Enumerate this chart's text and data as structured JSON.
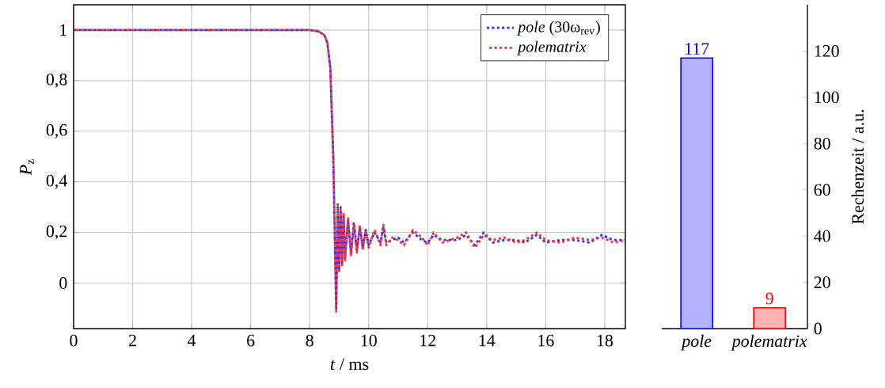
{
  "chart_data": [
    {
      "type": "line",
      "xlabel": "*t* / ms",
      "ylabel": "*P*$_{z}$",
      "xlim": [
        0,
        18.7
      ],
      "ylim": [
        -0.18,
        1.1
      ],
      "xticks": [
        0,
        2,
        4,
        6,
        8,
        10,
        12,
        14,
        16,
        18
      ],
      "yticks": [
        0,
        {
          "value": 0.2,
          "label": "0,2"
        },
        {
          "value": 0.4,
          "label": "0,4"
        },
        {
          "value": 0.6,
          "label": "0,6"
        },
        {
          "value": 0.8,
          "label": "0,8"
        },
        1
      ],
      "grid": true,
      "legend": "top right",
      "line_style": "dotted",
      "marker": "none",
      "series": [
        {
          "name": "*pole* (30ω$_{rev}$)",
          "color": "#3030ff",
          "x": [
            0,
            8,
            8.3,
            8.5,
            8.6,
            8.7,
            8.8,
            8.85,
            8.9,
            8.95,
            9.0,
            9.05,
            9.1,
            9.15,
            9.2,
            9.3,
            9.4,
            9.5,
            9.6,
            9.7,
            9.8,
            9.9,
            10.0,
            10.2,
            10.4,
            10.5,
            10.6,
            10.8,
            11.0,
            11.2,
            11.5,
            11.8,
            12.0,
            12.2,
            12.5,
            13.0,
            13.3,
            13.6,
            13.9,
            14.2,
            14.6,
            15.0,
            15.3,
            15.7,
            16.0,
            16.5,
            17.0,
            17.5,
            17.9,
            18.3,
            18.7
          ],
          "values": [
            1,
            1,
            0.995,
            0.98,
            0.95,
            0.85,
            0.5,
            0.2,
            -0.1,
            0.3,
            0.05,
            0.3,
            0.08,
            0.27,
            0.1,
            0.25,
            0.12,
            0.24,
            0.13,
            0.22,
            0.14,
            0.21,
            0.15,
            0.2,
            0.16,
            0.22,
            0.16,
            0.17,
            0.18,
            0.16,
            0.2,
            0.17,
            0.16,
            0.19,
            0.17,
            0.17,
            0.19,
            0.15,
            0.2,
            0.16,
            0.17,
            0.17,
            0.16,
            0.19,
            0.16,
            0.17,
            0.17,
            0.16,
            0.19,
            0.17,
            0.17
          ]
        },
        {
          "name": "*polematrix*",
          "color": "#ff3030",
          "x": [
            0,
            8,
            8.3,
            8.5,
            8.6,
            8.7,
            8.8,
            8.85,
            8.9,
            8.95,
            9.0,
            9.05,
            9.1,
            9.15,
            9.2,
            9.3,
            9.4,
            9.5,
            9.6,
            9.7,
            9.8,
            9.9,
            10.0,
            10.2,
            10.4,
            10.5,
            10.6,
            10.8,
            11.0,
            11.2,
            11.5,
            11.8,
            12.0,
            12.2,
            12.5,
            13.0,
            13.3,
            13.6,
            13.9,
            14.2,
            14.6,
            15.0,
            15.3,
            15.7,
            16.0,
            16.5,
            17.0,
            17.5,
            17.9,
            18.3,
            18.7
          ],
          "values": [
            1,
            1,
            0.995,
            0.98,
            0.95,
            0.85,
            0.5,
            0.2,
            -0.12,
            0.32,
            0.04,
            0.29,
            0.07,
            0.28,
            0.09,
            0.26,
            0.11,
            0.23,
            0.12,
            0.23,
            0.13,
            0.21,
            0.14,
            0.21,
            0.15,
            0.23,
            0.15,
            0.18,
            0.17,
            0.15,
            0.21,
            0.18,
            0.15,
            0.2,
            0.16,
            0.18,
            0.2,
            0.14,
            0.19,
            0.17,
            0.18,
            0.16,
            0.17,
            0.2,
            0.17,
            0.16,
            0.18,
            0.17,
            0.18,
            0.16,
            0.17
          ]
        }
      ]
    },
    {
      "type": "bar",
      "ylabel": "Rechenzeit / a.u.",
      "categories": [
        "pole",
        "polematrix"
      ],
      "values": [
        117,
        9
      ],
      "colors": [
        "#0000ff",
        "#ff0000"
      ],
      "ylim": [
        0,
        140
      ],
      "yticks": [
        0,
        20,
        40,
        60,
        80,
        100,
        120
      ],
      "data_labels": true,
      "grid": false
    }
  ]
}
